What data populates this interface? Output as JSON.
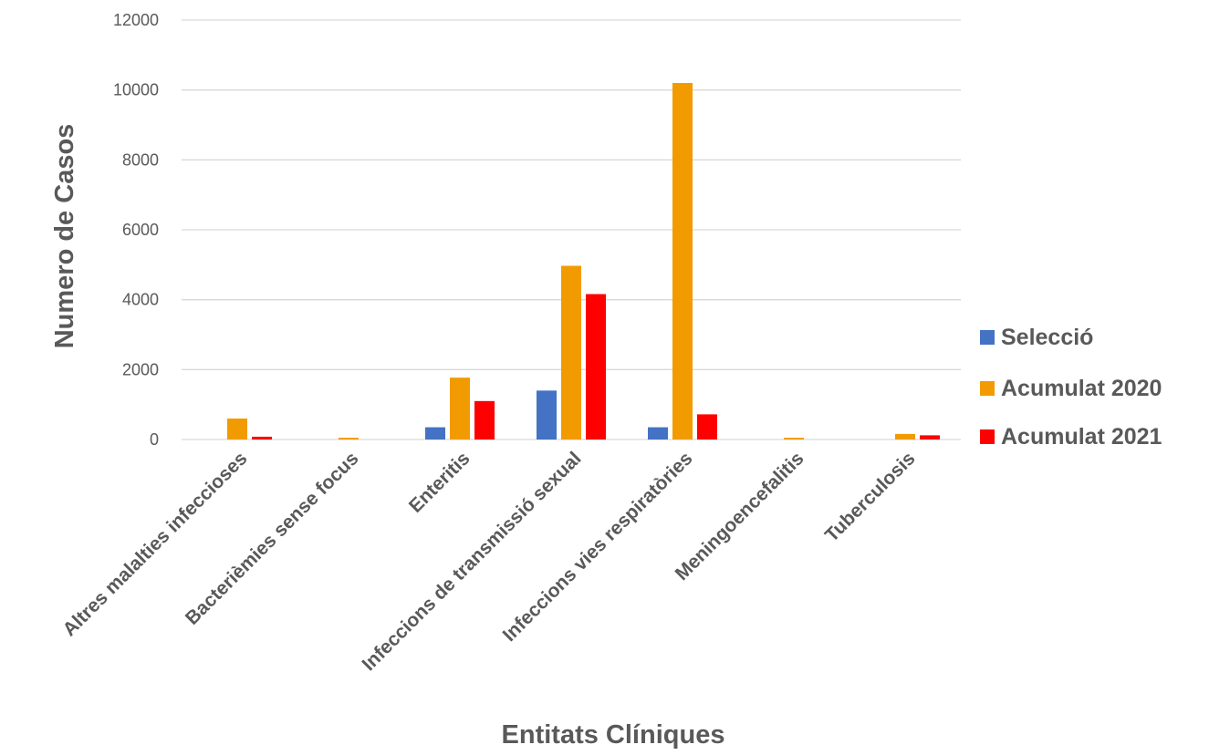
{
  "chart_data": {
    "type": "bar",
    "title": "",
    "xlabel": "Entitats Clíniques",
    "ylabel": "Numero de Casos",
    "ylim": [
      0,
      12000
    ],
    "yticks": [
      0,
      2000,
      4000,
      6000,
      8000,
      10000,
      12000
    ],
    "grid": true,
    "legend_position": "right",
    "categories": [
      "Altres malalties infeccioses",
      "Bacterièmies sense focus",
      "Enteritis",
      "Infeccions de transmissió sexual",
      "Infeccions vies respiratòries",
      "Meningoencefalitis",
      "Tuberculosis"
    ],
    "series": [
      {
        "name": "Selecció",
        "color": "#4472C4",
        "values": [
          0,
          0,
          350,
          1400,
          350,
          0,
          0
        ]
      },
      {
        "name": "Acumulat 2020",
        "color": "#F29B00",
        "values": [
          600,
          50,
          1770,
          4970,
          10200,
          50,
          160
        ]
      },
      {
        "name": "Acumulat 2021",
        "color": "#FF0000",
        "values": [
          80,
          0,
          1100,
          4160,
          720,
          0,
          120
        ]
      }
    ]
  }
}
